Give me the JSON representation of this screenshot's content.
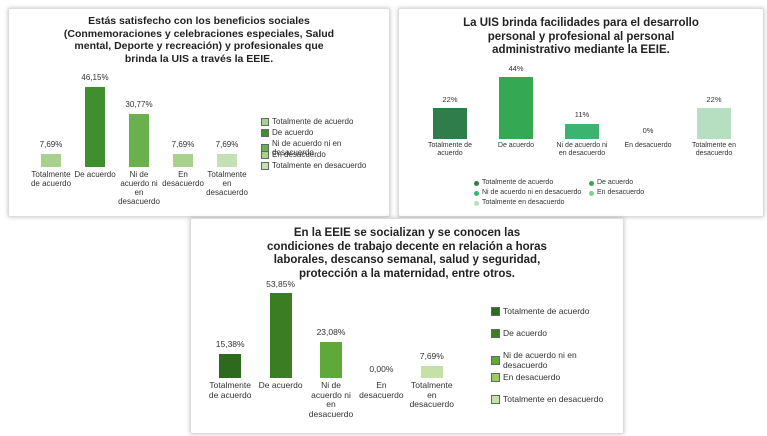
{
  "chart_data": [
    {
      "type": "bar",
      "title": [
        "Estás satisfecho con los beneficios sociales",
        "(Conmemoraciones y celebraciones especiales, Salud",
        "mental, Deporte y recreación) y profesionales que",
        "brinda la UIS a través la EEIE."
      ],
      "categories": [
        "Totalmente de acuerdo",
        "De acuerdo",
        "Ni de acuerdo ni en desacuerdo",
        "En desacuerdo",
        "Totalmente en desacuerdo"
      ],
      "values": [
        7.69,
        46.15,
        30.77,
        7.69,
        7.69
      ],
      "value_labels": [
        "7,69%",
        "46,15%",
        "30,77%",
        "7,69%",
        "7,69%"
      ],
      "colors": [
        "#a9d18e",
        "#3f8f2f",
        "#6ab04c",
        "#a9d18e",
        "#c5e0b4"
      ],
      "legend": "right"
    },
    {
      "type": "bar",
      "title": [
        "La UIS brinda facilidades para el desarrollo",
        "personal y profesional al personal",
        "administrativo mediante la EEIE."
      ],
      "categories": [
        "Totalmente de acuerdo",
        "De acuerdo",
        "Ni de acuerdo ni en desacuerdo",
        "En desacuerdo",
        "Totalmente en desacuerdo"
      ],
      "values": [
        22,
        44,
        11,
        0,
        22
      ],
      "value_labels": [
        "22%",
        "44%",
        "11%",
        "0%",
        "22%"
      ],
      "colors": [
        "#2f7d4a",
        "#34a853",
        "#3cb371",
        "#7fcf97",
        "#b5dfc0"
      ],
      "legend": "bottom"
    },
    {
      "type": "bar",
      "title": [
        "En la EEIE se socializan y se conocen las",
        "condiciones de trabajo decente en relación a horas",
        "laborales, descanso semanal, salud y seguridad,",
        "protección a la maternidad, entre otros."
      ],
      "categories": [
        "Totalmente de acuerdo",
        "De acuerdo",
        "Ni de acuerdo ni en desacuerdo",
        "En desacuerdo",
        "Totalmente en desacuerdo"
      ],
      "values": [
        15.38,
        53.85,
        23.08,
        0,
        7.69
      ],
      "value_labels": [
        "15,38%",
        "53,85%",
        "23,08%",
        "0,00%",
        "7,69%"
      ],
      "colors": [
        "#2d6a1e",
        "#3b7d23",
        "#5fa83a",
        "#9ccc65",
        "#c5e1a5"
      ],
      "legend": "right"
    }
  ]
}
